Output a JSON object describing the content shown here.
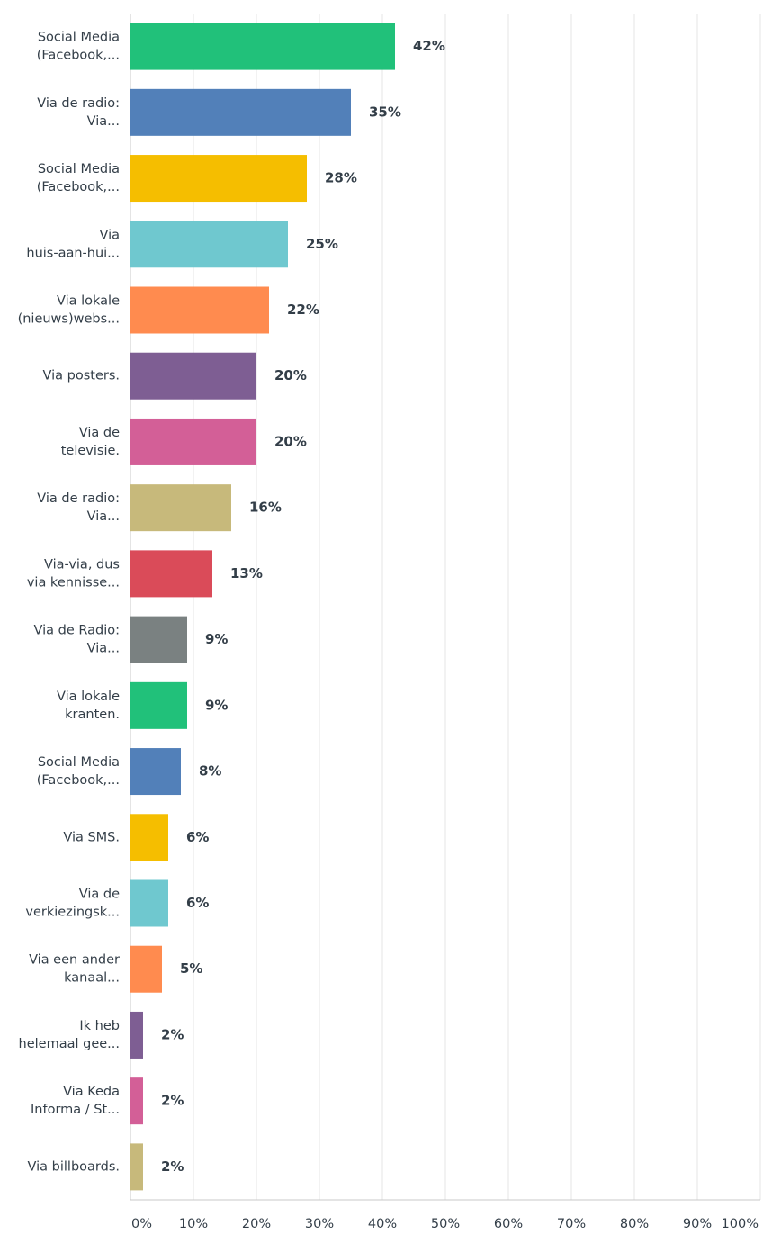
{
  "chart_data": {
    "type": "barh",
    "categories": [
      [
        "Social Media",
        "(Facebook,..."
      ],
      [
        "Via de radio:",
        "Via..."
      ],
      [
        "Social Media",
        "(Facebook,..."
      ],
      [
        "Via",
        "huis-aan-hui..."
      ],
      [
        "Via lokale",
        "(nieuws)webs..."
      ],
      [
        "Via posters."
      ],
      [
        "Via de",
        "televisie."
      ],
      [
        "Via de radio:",
        "Via..."
      ],
      [
        "Via-via, dus",
        "via kennisse..."
      ],
      [
        "Via de Radio:",
        "Via..."
      ],
      [
        "Via lokale",
        "kranten."
      ],
      [
        "Social Media",
        "(Facebook,..."
      ],
      [
        "Via SMS."
      ],
      [
        "Via de",
        "verkiezingsk..."
      ],
      [
        "Via een ander",
        "kanaal..."
      ],
      [
        "Ik heb",
        "helemaal gee..."
      ],
      [
        "Via Keda",
        "Informa / St..."
      ],
      [
        "Via billboards."
      ]
    ],
    "values": [
      42,
      35,
      28,
      25,
      22,
      20,
      20,
      16,
      13,
      9,
      9,
      8,
      6,
      6,
      5,
      2,
      2,
      2
    ],
    "value_labels": [
      "42%",
      "35%",
      "28%",
      "25%",
      "22%",
      "20%",
      "20%",
      "16%",
      "13%",
      "9%",
      "9%",
      "8%",
      "6%",
      "6%",
      "5%",
      "2%",
      "2%",
      "2%"
    ],
    "colors": [
      "#21c17a",
      "#5280b9",
      "#f5be00",
      "#6fc8cf",
      "#ff8b4f",
      "#7e5e93",
      "#d35f97",
      "#c7b97b",
      "#da4b59",
      "#7a8181",
      "#21c17a",
      "#5280b9",
      "#f5be00",
      "#6fc8cf",
      "#ff8b4f",
      "#7e5e93",
      "#d35f97",
      "#c7b97b"
    ],
    "xlim": [
      0,
      100
    ],
    "xticks": [
      {
        "value": 0,
        "label": "0%"
      },
      {
        "value": 10,
        "label": "10%"
      },
      {
        "value": 20,
        "label": "20%"
      },
      {
        "value": 30,
        "label": "30%"
      },
      {
        "value": 40,
        "label": "40%"
      },
      {
        "value": 50,
        "label": "50%"
      },
      {
        "value": 60,
        "label": "60%"
      },
      {
        "value": 70,
        "label": "70%"
      },
      {
        "value": 80,
        "label": "80%"
      },
      {
        "value": 90,
        "label": "90%"
      },
      {
        "value": 100,
        "label": "100%"
      }
    ],
    "grid": true
  }
}
